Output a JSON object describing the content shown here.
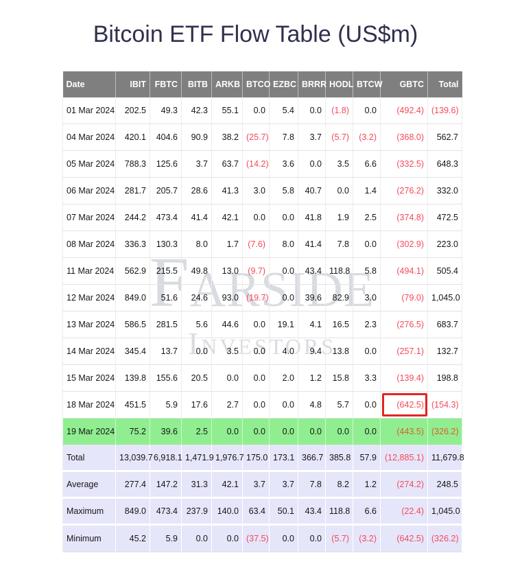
{
  "page": {
    "title": "Bitcoin ETF Flow Table (US$m)"
  },
  "watermark": {
    "line1": "Farside",
    "line2": "Investors"
  },
  "table": {
    "columns": [
      "Date",
      "IBIT",
      "FBTC",
      "BITB",
      "ARKB",
      "BTCO",
      "EZBC",
      "BRRR",
      "HODL",
      "BTCW",
      "GBTC",
      "Total"
    ],
    "rows": [
      {
        "label": "01 Mar 2024",
        "values": [
          "202.5",
          "49.3",
          "42.3",
          "55.1",
          "0.0",
          "5.4",
          "0.0",
          "(1.8)",
          "0.0",
          "(492.4)",
          "(139.6)"
        ],
        "highlight": false
      },
      {
        "label": "04 Mar 2024",
        "values": [
          "420.1",
          "404.6",
          "90.9",
          "38.2",
          "(25.7)",
          "7.8",
          "3.7",
          "(5.7)",
          "(3.2)",
          "(368.0)",
          "562.7"
        ],
        "highlight": false
      },
      {
        "label": "05 Mar 2024",
        "values": [
          "788.3",
          "125.6",
          "3.7",
          "63.7",
          "(14.2)",
          "3.6",
          "0.0",
          "3.5",
          "6.6",
          "(332.5)",
          "648.3"
        ],
        "highlight": false
      },
      {
        "label": "06 Mar 2024",
        "values": [
          "281.7",
          "205.7",
          "28.6",
          "41.3",
          "3.0",
          "5.8",
          "40.7",
          "0.0",
          "1.4",
          "(276.2)",
          "332.0"
        ],
        "highlight": false
      },
      {
        "label": "07 Mar 2024",
        "values": [
          "244.2",
          "473.4",
          "41.4",
          "42.1",
          "0.0",
          "0.0",
          "41.8",
          "1.9",
          "2.5",
          "(374.8)",
          "472.5"
        ],
        "highlight": false
      },
      {
        "label": "08 Mar 2024",
        "values": [
          "336.3",
          "130.3",
          "8.0",
          "1.7",
          "(7.6)",
          "8.0",
          "41.4",
          "7.8",
          "0.0",
          "(302.9)",
          "223.0"
        ],
        "highlight": false
      },
      {
        "label": "11 Mar 2024",
        "values": [
          "562.9",
          "215.5",
          "49.8",
          "13.0",
          "(9.7)",
          "0.0",
          "43.4",
          "118.8",
          "5.8",
          "(494.1)",
          "505.4"
        ],
        "highlight": false
      },
      {
        "label": "12 Mar 2024",
        "values": [
          "849.0",
          "51.6",
          "24.6",
          "93.0",
          "(19.7)",
          "0.0",
          "39.6",
          "82.9",
          "3.0",
          "(79.0)",
          "1,045.0"
        ],
        "highlight": false
      },
      {
        "label": "13 Mar 2024",
        "values": [
          "586.5",
          "281.5",
          "5.6",
          "44.6",
          "0.0",
          "19.1",
          "4.1",
          "16.5",
          "2.3",
          "(276.5)",
          "683.7"
        ],
        "highlight": false
      },
      {
        "label": "14 Mar 2024",
        "values": [
          "345.4",
          "13.7",
          "0.0",
          "3.5",
          "0.0",
          "4.0",
          "9.4",
          "13.8",
          "0.0",
          "(257.1)",
          "132.7"
        ],
        "highlight": false
      },
      {
        "label": "15 Mar 2024",
        "values": [
          "139.8",
          "155.6",
          "20.5",
          "0.0",
          "0.0",
          "2.0",
          "1.2",
          "15.8",
          "3.3",
          "(139.4)",
          "198.8"
        ],
        "highlight": false
      },
      {
        "label": "18 Mar 2024",
        "values": [
          "451.5",
          "5.9",
          "17.6",
          "2.7",
          "0.0",
          "0.0",
          "4.8",
          "5.7",
          "0.0",
          "(642.5)",
          "(154.3)"
        ],
        "highlight": false
      },
      {
        "label": "19 Mar 2024",
        "values": [
          "75.2",
          "39.6",
          "2.5",
          "0.0",
          "0.0",
          "0.0",
          "0.0",
          "0.0",
          "0.0",
          "(443.5)",
          "(326.2)"
        ],
        "highlight": true
      }
    ],
    "summary": [
      {
        "label": "Total",
        "values": [
          "13,039.7",
          "6,918.1",
          "1,471.9",
          "1,976.7",
          "175.0",
          "173.1",
          "366.7",
          "385.8",
          "57.9",
          "(12,885.1)",
          "11,679.8"
        ]
      },
      {
        "label": "Average",
        "values": [
          "277.4",
          "147.2",
          "31.3",
          "42.1",
          "3.7",
          "3.7",
          "7.8",
          "8.2",
          "1.2",
          "(274.2)",
          "248.5"
        ]
      },
      {
        "label": "Maximum",
        "values": [
          "849.0",
          "473.4",
          "237.9",
          "140.0",
          "63.4",
          "50.1",
          "43.4",
          "118.8",
          "6.6",
          "(22.4)",
          "1,045.0"
        ]
      },
      {
        "label": "Minimum",
        "values": [
          "45.2",
          "5.9",
          "0.0",
          "0.0",
          "(37.5)",
          "0.0",
          "0.0",
          "(5.7)",
          "(3.2)",
          "(642.5)",
          "(326.2)"
        ]
      }
    ],
    "annotation": {
      "boxed_row": "18 Mar 2024",
      "boxed_col": "GBTC"
    }
  },
  "colors": {
    "title": "#30304d",
    "header_bg": "#7f7f7f",
    "header_text": "#ffffff",
    "negative": "#f5485a",
    "highlight_row_bg": "#90ee90",
    "summary_row_bg": "#e6e6fa",
    "annotation_box": "#e42424",
    "watermark": "#d8dbe0"
  }
}
